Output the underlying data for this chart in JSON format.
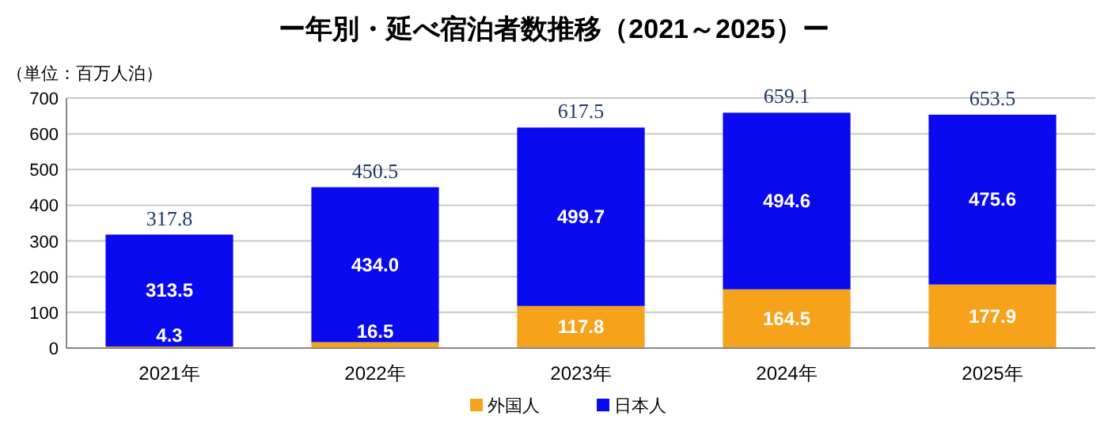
{
  "chart_data": {
    "type": "bar",
    "title": "ー年別・延べ宿泊者数推移（2021～2025）ー",
    "ylabel": "（単位：百万人泊）",
    "categories": [
      "2021年",
      "2022年",
      "2023年",
      "2024年",
      "2025年"
    ],
    "stacked": true,
    "series": [
      {
        "name": "外国人",
        "color": "#f7a21b",
        "values": [
          4.3,
          16.5,
          117.8,
          164.5,
          177.9
        ],
        "value_labels": [
          "4.3",
          "16.5",
          "117.8",
          "164.5",
          "177.9"
        ]
      },
      {
        "name": "日本人",
        "color": "#0a0af0",
        "values": [
          313.5,
          434.0,
          499.7,
          494.6,
          475.6
        ],
        "value_labels": [
          "313.5",
          "434.0",
          "499.7",
          "494.6",
          "475.6"
        ]
      }
    ],
    "totals": [
      "317.8",
      "450.5",
      "617.5",
      "659.1",
      "653.5"
    ],
    "ylim": [
      0,
      700
    ],
    "yticks": [
      0,
      100,
      200,
      300,
      400,
      500,
      600,
      700
    ],
    "grid": "y",
    "legend": "bottom"
  }
}
